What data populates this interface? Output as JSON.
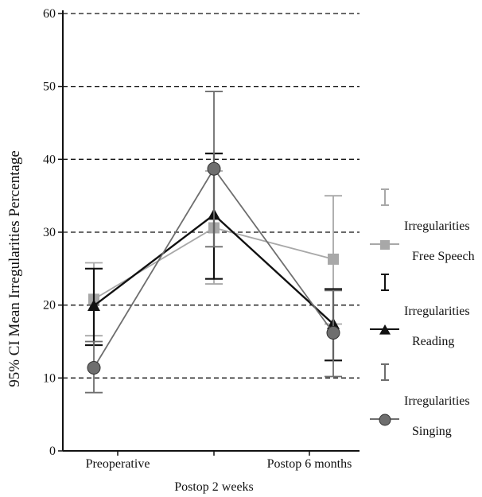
{
  "chart_data": {
    "type": "line",
    "title": "",
    "xlabel": "",
    "ylabel": "95% CI Mean Irregularities Percentage",
    "ylim": [
      0,
      60
    ],
    "yticks": [
      0,
      10,
      20,
      30,
      40,
      50,
      60
    ],
    "grid": "dashed horizontal",
    "legend_position": "right",
    "categories": [
      "Preoperative",
      "Postop 2 weeks",
      "Postop 6 months"
    ],
    "series": [
      {
        "name": "Irregularities Free Speech",
        "legend_lines": [
          "Irregularities",
          "Free Speech"
        ],
        "marker": "square",
        "color": "#a8a8a8",
        "values": [
          20.8,
          30.6,
          26.3
        ],
        "ci_low": [
          15.8,
          22.9,
          17.4
        ],
        "ci_high": [
          25.8,
          38.4,
          35.0
        ]
      },
      {
        "name": "Irregularities Reading",
        "legend_lines": [
          "Irregularities",
          "Reading"
        ],
        "marker": "triangle",
        "color": "#111111",
        "values": [
          19.9,
          32.4,
          17.4
        ],
        "ci_low": [
          14.5,
          23.6,
          12.4
        ],
        "ci_high": [
          25.0,
          40.8,
          22.2
        ]
      },
      {
        "name": "Irregularities Singing",
        "legend_lines": [
          "Irregularities",
          "Singing"
        ],
        "marker": "circle",
        "color": "#6e6e6e",
        "values": [
          11.4,
          38.7,
          16.2
        ],
        "ci_low": [
          8.0,
          28.0,
          10.2
        ],
        "ci_high": [
          15.0,
          49.3,
          22.0
        ]
      }
    ]
  }
}
